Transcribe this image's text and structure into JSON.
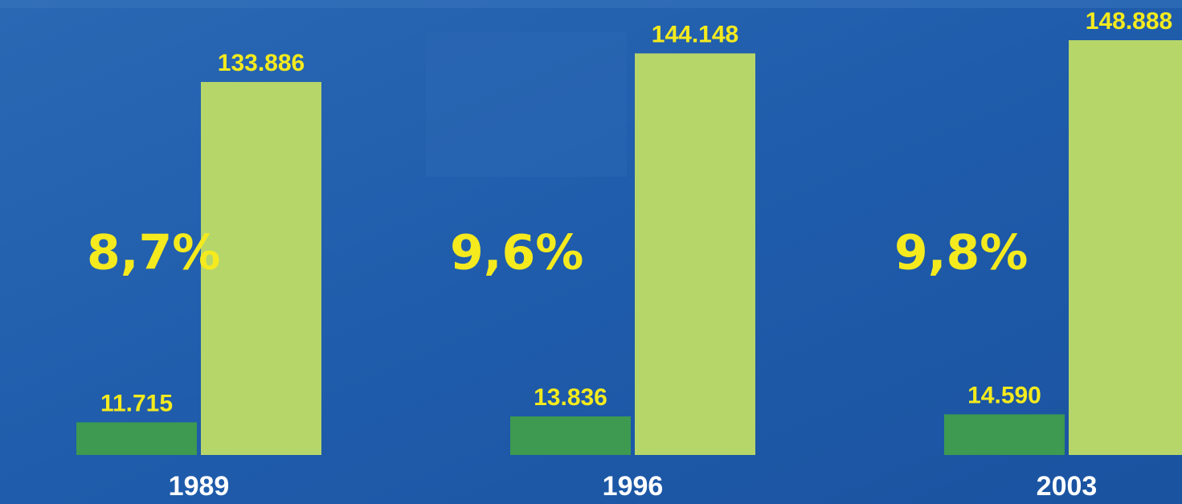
{
  "chart_data": {
    "type": "bar",
    "categories": [
      "1989",
      "1996",
      "2003"
    ],
    "annotations": [
      "8,7%",
      "9,6%",
      "9,8%"
    ],
    "series": [
      {
        "color": "#3d9a50",
        "values": [
          11715,
          13836,
          14590
        ],
        "value_labels": [
          "11.715",
          "13.836",
          "14.590"
        ]
      },
      {
        "color": "#b6d66a",
        "values": [
          133886,
          144148,
          148888
        ],
        "value_labels": [
          "133.886",
          "144.148",
          "148.888"
        ]
      }
    ]
  }
}
